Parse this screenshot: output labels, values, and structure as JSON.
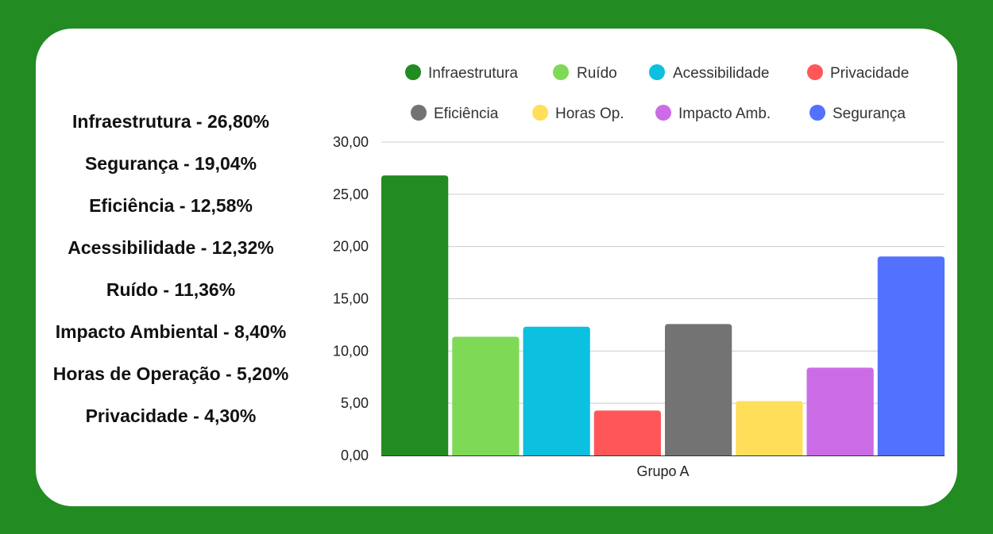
{
  "summary": [
    {
      "label": "Infraestrutura - 26,80%"
    },
    {
      "label": "Segurança - 19,04%"
    },
    {
      "label": "Eficiência - 12,58%"
    },
    {
      "label": "Acessibilidade - 12,32%"
    },
    {
      "label": "Ruído - 11,36%"
    },
    {
      "label": "Impacto Ambiental - 8,40%"
    },
    {
      "label": "Horas de Operação - 5,20%"
    },
    {
      "label": "Privacidade - 4,30%"
    }
  ],
  "chart_data": {
    "type": "bar",
    "categories": [
      "Grupo A"
    ],
    "series": [
      {
        "name": "Infraestrutura",
        "values": [
          26.8
        ],
        "color": "#228b22"
      },
      {
        "name": "Ruído",
        "values": [
          11.36
        ],
        "color": "#7ed957"
      },
      {
        "name": "Acessibilidade",
        "values": [
          12.32
        ],
        "color": "#0cc0df"
      },
      {
        "name": "Privacidade",
        "values": [
          4.3
        ],
        "color": "#ff5757"
      },
      {
        "name": "Eficiência",
        "values": [
          12.58
        ],
        "color": "#737373"
      },
      {
        "name": "Horas Op.",
        "values": [
          5.2
        ],
        "color": "#ffde59"
      },
      {
        "name": "Impacto Amb.",
        "values": [
          8.4
        ],
        "color": "#cb6ce6"
      },
      {
        "name": "Segurança",
        "values": [
          19.04
        ],
        "color": "#5271ff"
      }
    ],
    "xlabel": "",
    "ylabel": "",
    "ylim": [
      0,
      30
    ],
    "yticks": [
      "0,00",
      "5,00",
      "10,00",
      "15,00",
      "20,00",
      "25,00",
      "30,00"
    ],
    "grid": true,
    "legend_position": "top"
  }
}
